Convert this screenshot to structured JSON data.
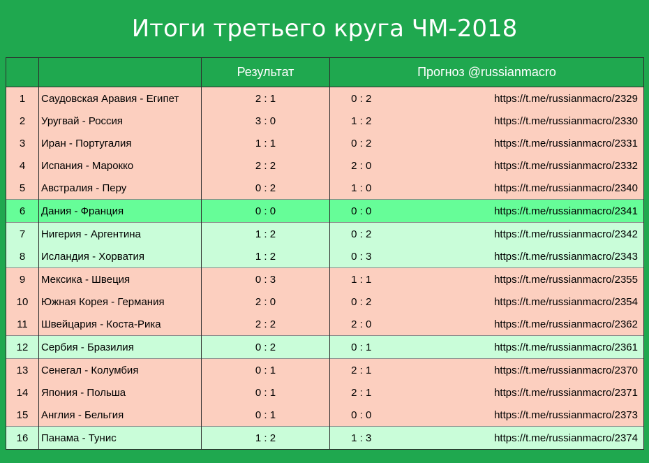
{
  "title": "Итоги третьего круга ЧМ-2018",
  "header": {
    "num": "",
    "match": "",
    "result": "Результат",
    "forecast": "Прогноз @russianmacro"
  },
  "colors": {
    "background": "#1fa84f",
    "miss": "#fccfbf",
    "exact": "#66fd98",
    "outcome": "#c9fdd9"
  },
  "rows": [
    {
      "num": "1",
      "match": "Саудовская Аравия - Египет",
      "result": "2 : 1",
      "forecast": "0 : 2",
      "link": "https://t.me/russianmacro/2329",
      "status": "miss"
    },
    {
      "num": "2",
      "match": "Уругвай - Россия",
      "result": "3 : 0",
      "forecast": "1 : 2",
      "link": "https://t.me/russianmacro/2330",
      "status": "miss"
    },
    {
      "num": "3",
      "match": "Иран - Португалия",
      "result": "1 : 1",
      "forecast": "0 : 2",
      "link": "https://t.me/russianmacro/2331",
      "status": "miss"
    },
    {
      "num": "4",
      "match": "Испания - Марокко",
      "result": "2 : 2",
      "forecast": "2 : 0",
      "link": "https://t.me/russianmacro/2332",
      "status": "miss"
    },
    {
      "num": "5",
      "match": "Австралия - Перу",
      "result": "0 : 2",
      "forecast": "1 : 0",
      "link": "https://t.me/russianmacro/2340",
      "status": "miss"
    },
    {
      "num": "6",
      "match": "Дания - Франция",
      "result": "0 : 0",
      "forecast": "0 : 0",
      "link": "https://t.me/russianmacro/2341",
      "status": "exact"
    },
    {
      "num": "7",
      "match": "Нигерия - Аргентина",
      "result": "1 : 2",
      "forecast": "0 : 2",
      "link": "https://t.me/russianmacro/2342",
      "status": "outcome"
    },
    {
      "num": "8",
      "match": "Исландия - Хорватия",
      "result": "1 : 2",
      "forecast": "0 : 3",
      "link": "https://t.me/russianmacro/2343",
      "status": "outcome"
    },
    {
      "num": "9",
      "match": "Мексика - Швеция",
      "result": "0 : 3",
      "forecast": "1 : 1",
      "link": "https://t.me/russianmacro/2355",
      "status": "miss"
    },
    {
      "num": "10",
      "match": "Южная Корея - Германия",
      "result": "2 : 0",
      "forecast": "0 : 2",
      "link": "https://t.me/russianmacro/2354",
      "status": "miss"
    },
    {
      "num": "11",
      "match": "Швейцария - Коста-Рика",
      "result": "2 : 2",
      "forecast": "2 : 0",
      "link": "https://t.me/russianmacro/2362",
      "status": "miss"
    },
    {
      "num": "12",
      "match": "Сербия - Бразилия",
      "result": "0 : 2",
      "forecast": "0 : 1",
      "link": "https://t.me/russianmacro/2361",
      "status": "outcome"
    },
    {
      "num": "13",
      "match": "Сенегал - Колумбия",
      "result": "0 : 1",
      "forecast": "2 : 1",
      "link": "https://t.me/russianmacro/2370",
      "status": "miss"
    },
    {
      "num": "14",
      "match": "Япония - Польша",
      "result": "0 : 1",
      "forecast": "2 : 1",
      "link": "https://t.me/russianmacro/2371",
      "status": "miss"
    },
    {
      "num": "15",
      "match": "Англия - Бельгия",
      "result": "0 : 1",
      "forecast": "0 : 0",
      "link": "https://t.me/russianmacro/2373",
      "status": "miss"
    },
    {
      "num": "16",
      "match": "Панама - Тунис",
      "result": "1 : 2",
      "forecast": "1 : 3",
      "link": "https://t.me/russianmacro/2374",
      "status": "outcome"
    }
  ]
}
